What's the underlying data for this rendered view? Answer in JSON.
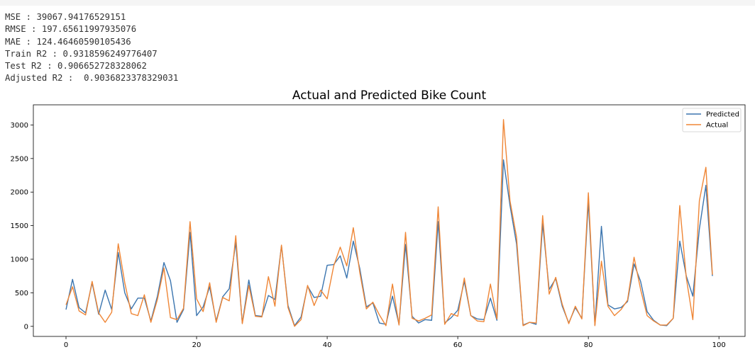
{
  "metrics": [
    {
      "label": "MSE",
      "sep": " : ",
      "value": "39067.94176529151"
    },
    {
      "label": "RMSE",
      "sep": " : ",
      "value": "197.65611997935076"
    },
    {
      "label": "MAE",
      "sep": " : ",
      "value": "124.46460590105436"
    },
    {
      "label": "Train R2",
      "sep": " : ",
      "value": "0.9318596249776407"
    },
    {
      "label": "Test R2",
      "sep": " : ",
      "value": "0.906652728328062"
    },
    {
      "label": "Adjusted R2",
      "sep": " :  ",
      "value": "0.9036823378329031"
    }
  ],
  "chart_data": {
    "type": "line",
    "title": "Actual and Predicted Bike Count",
    "xlabel": "",
    "ylabel": "",
    "xlim": [
      -5,
      104
    ],
    "ylim": [
      -150,
      3300
    ],
    "xticks": [
      0,
      20,
      40,
      60,
      80,
      100
    ],
    "yticks": [
      0,
      500,
      1000,
      1500,
      2000,
      2500,
      3000
    ],
    "grid": false,
    "legend": "top-right",
    "series": [
      {
        "name": "Predicted",
        "color": "#3b75af",
        "values": [
          250,
          700,
          280,
          200,
          650,
          180,
          540,
          250,
          1100,
          500,
          260,
          420,
          420,
          80,
          450,
          950,
          680,
          60,
          250,
          1400,
          160,
          290,
          590,
          80,
          440,
          560,
          1250,
          50,
          690,
          160,
          150,
          460,
          400,
          1200,
          310,
          10,
          140,
          600,
          430,
          450,
          910,
          920,
          1050,
          720,
          1270,
          860,
          290,
          350,
          50,
          30,
          450,
          30,
          1220,
          150,
          50,
          100,
          90,
          1560,
          50,
          130,
          240,
          670,
          160,
          110,
          100,
          420,
          90,
          2480,
          1800,
          1230,
          20,
          60,
          30,
          1530,
          550,
          710,
          300,
          50,
          280,
          120,
          1860,
          20,
          1490,
          320,
          260,
          280,
          370,
          930,
          670,
          220,
          90,
          20,
          10,
          120,
          1270,
          750,
          450,
          1450,
          2100,
          750
        ]
      },
      {
        "name": "Actual",
        "color": "#ef8636",
        "values": [
          320,
          590,
          230,
          170,
          670,
          200,
          60,
          210,
          1230,
          650,
          190,
          160,
          470,
          60,
          400,
          870,
          130,
          100,
          270,
          1560,
          410,
          220,
          650,
          60,
          430,
          380,
          1350,
          40,
          610,
          150,
          140,
          740,
          300,
          1210,
          280,
          0,
          100,
          610,
          310,
          540,
          410,
          900,
          1180,
          900,
          1470,
          800,
          260,
          360,
          170,
          10,
          630,
          20,
          1400,
          120,
          80,
          120,
          170,
          1780,
          30,
          190,
          150,
          720,
          160,
          80,
          70,
          630,
          110,
          3080,
          1870,
          1330,
          10,
          60,
          50,
          1650,
          480,
          730,
          330,
          40,
          300,
          110,
          1990,
          10,
          970,
          300,
          160,
          250,
          390,
          1030,
          550,
          160,
          80,
          20,
          20,
          120,
          1800,
          720,
          100,
          1870,
          2370,
          770
        ]
      }
    ]
  }
}
